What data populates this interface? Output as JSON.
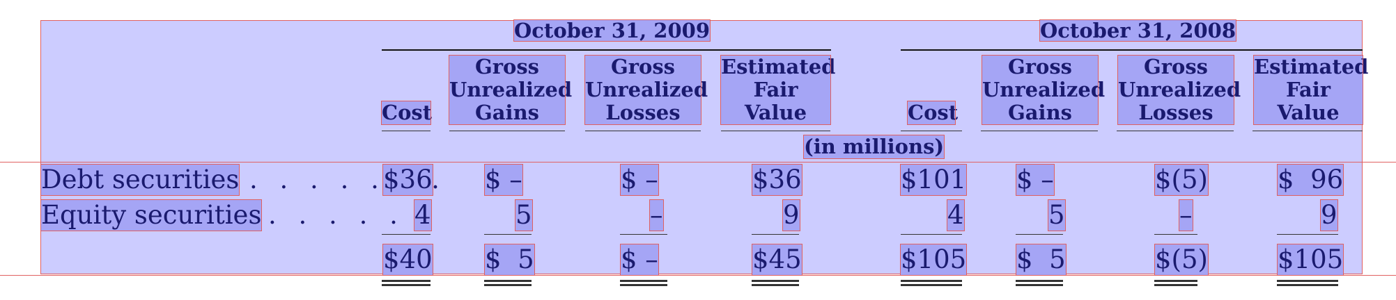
{
  "periods": [
    "October 31, 2009",
    "October 31, 2008"
  ],
  "columns": [
    "Cost",
    "Gross Unrealized Gains",
    "Gross Unrealized Losses",
    "Estimated Fair Value"
  ],
  "column_lines": {
    "gains": [
      "Gross",
      "Unrealized",
      "Gains"
    ],
    "losses": [
      "Gross",
      "Unrealized",
      "Losses"
    ],
    "fair": [
      "Estimated",
      "Fair",
      "Value"
    ]
  },
  "units": "(in millions)",
  "rows": [
    {
      "label": "Debt securities",
      "p2009": [
        "$36",
        "$ –",
        "$ –",
        "$36"
      ],
      "p2008": [
        "$101",
        "$ –",
        "$(5)",
        "$  96"
      ]
    },
    {
      "label": "Equity securities",
      "p2009": [
        "4",
        "5",
        "–",
        "9"
      ],
      "p2008": [
        "4",
        "5",
        "–",
        "9"
      ]
    }
  ],
  "totals": {
    "p2009": [
      "$40",
      "$  5",
      "$ –",
      "$45"
    ],
    "p2008": [
      "$105",
      "$  5",
      "$(5)",
      "$105"
    ]
  }
}
